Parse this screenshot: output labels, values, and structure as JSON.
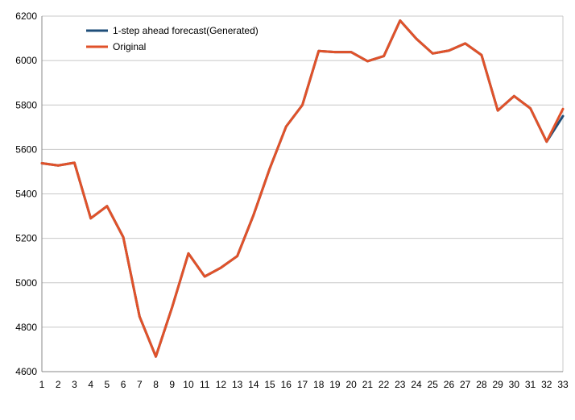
{
  "chart_data": {
    "type": "line",
    "title": "",
    "xlabel": "",
    "ylabel": "",
    "x": [
      1,
      2,
      3,
      4,
      5,
      6,
      7,
      8,
      9,
      10,
      11,
      12,
      13,
      14,
      15,
      16,
      17,
      18,
      19,
      20,
      21,
      22,
      23,
      24,
      25,
      26,
      27,
      28,
      29,
      30,
      31,
      32,
      33
    ],
    "x_tick_labels": [
      "1",
      "2",
      "3",
      "4",
      "5",
      "6",
      "7",
      "8",
      "9",
      "10",
      "11",
      "12",
      "13",
      "14",
      "15",
      "16",
      "17",
      "18",
      "19",
      "20",
      "21",
      "22",
      "23",
      "24",
      "25",
      "26",
      "27",
      "28",
      "29",
      "30",
      "31",
      "32",
      "33"
    ],
    "y_tick_labels": [
      "4600",
      "4800",
      "5000",
      "5200",
      "5400",
      "5600",
      "5800",
      "6000",
      "6200"
    ],
    "ylim": [
      4600,
      6200
    ],
    "y_ticks": [
      4600,
      4800,
      5000,
      5200,
      5400,
      5600,
      5800,
      6000,
      6200
    ],
    "grid": "horizontal",
    "legend_position": "top-left",
    "series": [
      {
        "name": "1-step ahead forecast(Generated)",
        "color": "#1f4e79",
        "values": [
          5538,
          5528,
          5540,
          5290,
          5345,
          5205,
          4848,
          4668,
          4890,
          5132,
          5028,
          5068,
          5120,
          5305,
          5515,
          5703,
          5800,
          6043,
          6038,
          6038,
          5997,
          6020,
          6180,
          6098,
          6032,
          6045,
          6077,
          6025,
          5775,
          5840,
          5785,
          5635,
          5750
        ]
      },
      {
        "name": "Original",
        "color": "#e0522a",
        "values": [
          5538,
          5528,
          5540,
          5290,
          5345,
          5205,
          4848,
          4668,
          4890,
          5132,
          5028,
          5068,
          5120,
          5305,
          5515,
          5703,
          5800,
          6043,
          6038,
          6038,
          5997,
          6020,
          6180,
          6098,
          6032,
          6045,
          6077,
          6025,
          5775,
          5840,
          5785,
          5635,
          5782
        ]
      }
    ]
  }
}
